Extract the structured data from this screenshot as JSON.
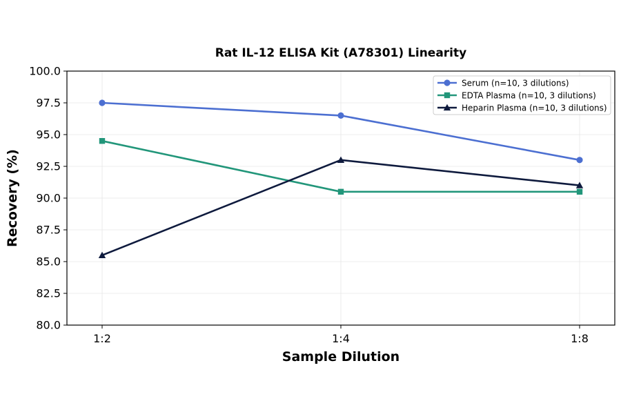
{
  "chart_data": {
    "type": "line",
    "title": "Rat IL-12 ELISA Kit (A78301) Linearity",
    "xlabel": "Sample Dilution",
    "ylabel": "Recovery (%)",
    "categories": [
      "1:2",
      "1:4",
      "1:8"
    ],
    "ylim": [
      80.0,
      100.0
    ],
    "yticks": [
      "80.0",
      "82.5",
      "85.0",
      "87.5",
      "90.0",
      "92.5",
      "95.0",
      "97.5",
      "100.0"
    ],
    "grid": true,
    "legend_position": "top-right",
    "series": [
      {
        "name": "Serum (n=10, 3 dilutions)",
        "values": [
          97.5,
          96.5,
          93.0
        ],
        "color": "#4c6fd1",
        "marker": "circle"
      },
      {
        "name": "EDTA Plasma (n=10, 3 dilutions)",
        "values": [
          94.5,
          90.5,
          90.5
        ],
        "color": "#22967a",
        "marker": "square"
      },
      {
        "name": "Heparin Plasma (n=10, 3 dilutions)",
        "values": [
          85.5,
          93.0,
          91.0
        ],
        "color": "#0e1a3d",
        "marker": "triangle"
      }
    ]
  }
}
